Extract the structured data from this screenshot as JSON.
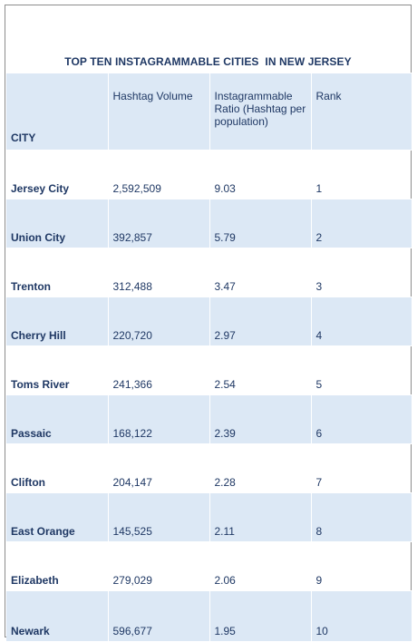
{
  "title": "TOP TEN INSTAGRAMMABLE CITIES  IN NEW JERSEY",
  "headers": {
    "city": "CITY",
    "volume": "Hashtag Volume",
    "ratio": "Instagrammable Ratio (Hashtag per population)",
    "rank": "Rank"
  },
  "rows": [
    {
      "city": "Jersey City",
      "volume": "2,592,509",
      "ratio": "9.03",
      "rank": "1"
    },
    {
      "city": "Union City",
      "volume": "392,857",
      "ratio": "5.79",
      "rank": "2"
    },
    {
      "city": "Trenton",
      "volume": "312,488",
      "ratio": "3.47",
      "rank": "3"
    },
    {
      "city": "Cherry Hill",
      "volume": "220,720",
      "ratio": "2.97",
      "rank": "4"
    },
    {
      "city": "Toms River",
      "volume": "241,366",
      "ratio": "2.54",
      "rank": "5"
    },
    {
      "city": "Passaic",
      "volume": "168,122",
      "ratio": "2.39",
      "rank": "6"
    },
    {
      "city": "Clifton",
      "volume": "204,147",
      "ratio": "2.28",
      "rank": "7"
    },
    {
      "city": "East Orange",
      "volume": "145,525",
      "ratio": "2.11",
      "rank": "8"
    },
    {
      "city": "Elizabeth",
      "volume": "279,029",
      "ratio": "2.06",
      "rank": "9"
    },
    {
      "city": "Newark",
      "volume": "596,677",
      "ratio": "1.95",
      "rank": "10"
    }
  ]
}
